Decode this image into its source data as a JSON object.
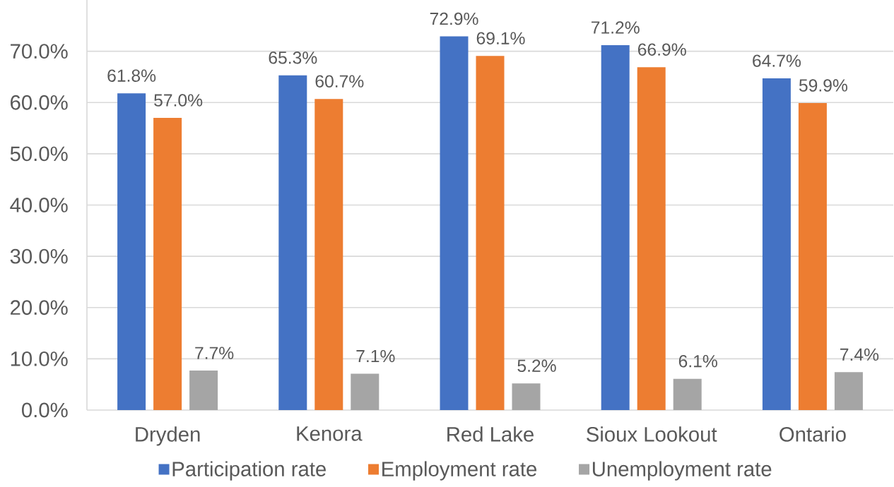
{
  "chart_data": {
    "type": "bar",
    "categories": [
      "Dryden",
      "Kenora",
      "Red Lake",
      "Sioux Lookout",
      "Ontario"
    ],
    "series": [
      {
        "name": "Participation rate",
        "color": "#4472c4",
        "values": [
          61.8,
          65.3,
          72.9,
          71.2,
          64.7
        ],
        "value_labels": [
          "61.8%",
          "65.3%",
          "72.9%",
          "71.2%",
          "64.7%"
        ]
      },
      {
        "name": "Employment rate",
        "color": "#ed7d31",
        "values": [
          57.0,
          60.7,
          69.1,
          66.9,
          59.9
        ],
        "value_labels": [
          "57.0%",
          "60.7%",
          "69.1%",
          "66.9%",
          "59.9%"
        ]
      },
      {
        "name": "Unemployment rate",
        "color": "#a5a5a5",
        "values": [
          7.7,
          7.1,
          5.2,
          6.1,
          7.4
        ],
        "value_labels": [
          "7.7%",
          "7.1%",
          "5.2%",
          "6.1%",
          "7.4%"
        ]
      }
    ],
    "ylim": [
      0,
      80
    ],
    "yticks": [
      {
        "value": 0,
        "label": "0.0%"
      },
      {
        "value": 10,
        "label": "10.0%"
      },
      {
        "value": 20,
        "label": "20.0%"
      },
      {
        "value": 30,
        "label": "30.0%"
      },
      {
        "value": 40,
        "label": "40.0%"
      },
      {
        "value": 50,
        "label": "50.0%"
      },
      {
        "value": 60,
        "label": "60.0%"
      },
      {
        "value": 70,
        "label": "70.0%"
      }
    ],
    "grid": "y",
    "legend": "bottom"
  }
}
